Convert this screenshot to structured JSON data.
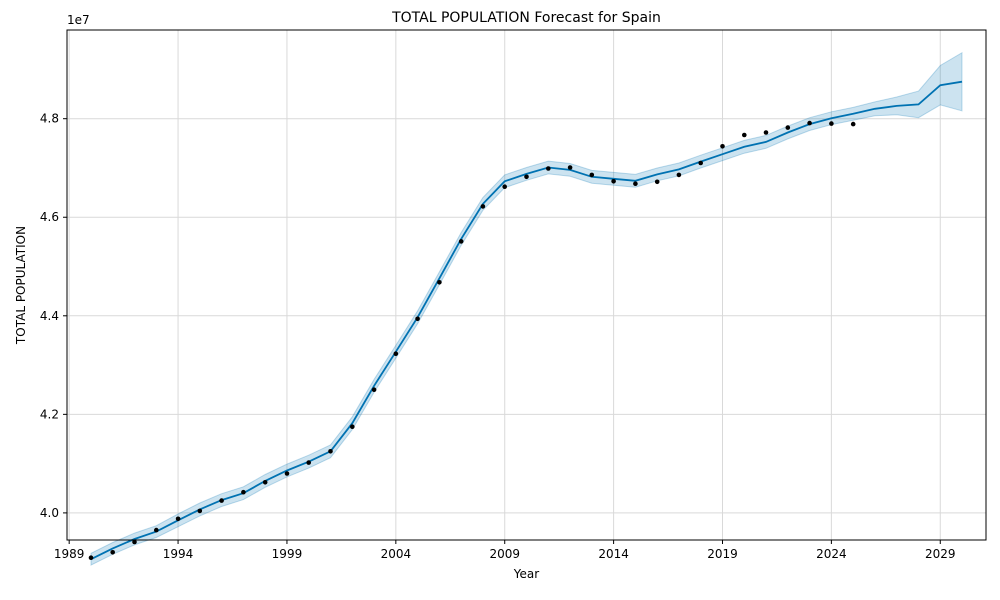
{
  "chart_data": {
    "type": "line",
    "title": "TOTAL POPULATION Forecast for Spain",
    "xlabel": "Year",
    "ylabel": "TOTAL POPULATION",
    "y_offset_label": "1e7",
    "y_scale": 10000000,
    "xlim": [
      1988.9,
      2031.1
    ],
    "ylim": [
      3.945,
      4.98
    ],
    "x_ticks": [
      1989,
      1994,
      1999,
      2004,
      2009,
      2014,
      2019,
      2024,
      2029
    ],
    "y_ticks": [
      4.0,
      4.2,
      4.4,
      4.6,
      4.8
    ],
    "y_tick_labels": [
      "4.0",
      "4.2",
      "4.4",
      "4.6",
      "4.8"
    ],
    "grid": true,
    "colors": {
      "forecast_line": "#0072b2",
      "interval_fill": "#0072b2",
      "observed_points": "#000000",
      "grid": "#d9d9d9"
    },
    "series": [
      {
        "kind": "observed",
        "x": [
          1990,
          1991,
          1992,
          1993,
          1994,
          1995,
          1996,
          1997,
          1998,
          1999,
          2000,
          2001,
          2002,
          2003,
          2004,
          2005,
          2006,
          2007,
          2008,
          2009,
          2010,
          2011,
          2012,
          2013,
          2014,
          2015,
          2016,
          2017,
          2018,
          2019,
          2020,
          2021,
          2022,
          2023,
          2024,
          2025
        ],
        "values": [
          3.909,
          3.92,
          3.941,
          3.965,
          3.988,
          4.004,
          4.025,
          4.042,
          4.062,
          4.08,
          4.102,
          4.125,
          4.175,
          4.25,
          4.323,
          4.394,
          4.468,
          4.551,
          4.622,
          4.662,
          4.682,
          4.699,
          4.701,
          4.686,
          4.673,
          4.668,
          4.672,
          4.686,
          4.71,
          4.744,
          4.767,
          4.772,
          4.782,
          4.791,
          4.79,
          4.789
        ]
      },
      {
        "kind": "forecast",
        "x": [
          1990,
          1991,
          1992,
          1993,
          1994,
          1995,
          1996,
          1997,
          1998,
          1999,
          2000,
          2001,
          2002,
          2003,
          2004,
          2005,
          2006,
          2007,
          2008,
          2009,
          2010,
          2011,
          2012,
          2013,
          2014,
          2015,
          2016,
          2017,
          2018,
          2019,
          2020,
          2021,
          2022,
          2023,
          2024,
          2025,
          2026,
          2027,
          2028,
          2029,
          2030
        ],
        "values": [
          3.906,
          3.928,
          3.947,
          3.962,
          3.985,
          4.007,
          4.026,
          4.04,
          4.065,
          4.086,
          4.104,
          4.125,
          4.182,
          4.258,
          4.327,
          4.397,
          4.476,
          4.556,
          4.627,
          4.673,
          4.688,
          4.701,
          4.696,
          4.682,
          4.678,
          4.674,
          4.687,
          4.697,
          4.713,
          4.728,
          4.743,
          4.753,
          4.772,
          4.789,
          4.801,
          4.81,
          4.82,
          4.826,
          4.829,
          4.868,
          4.875
        ],
        "lower": [
          3.894,
          3.916,
          3.935,
          3.95,
          3.972,
          3.994,
          4.013,
          4.027,
          4.052,
          4.073,
          4.091,
          4.112,
          4.169,
          4.245,
          4.314,
          4.384,
          4.463,
          4.543,
          4.614,
          4.66,
          4.675,
          4.688,
          4.683,
          4.669,
          4.665,
          4.661,
          4.674,
          4.684,
          4.7,
          4.715,
          4.73,
          4.74,
          4.759,
          4.776,
          4.788,
          4.797,
          4.806,
          4.808,
          4.802,
          4.828,
          4.816
        ],
        "upper": [
          3.918,
          3.94,
          3.959,
          3.974,
          3.998,
          4.02,
          4.039,
          4.053,
          4.078,
          4.099,
          4.117,
          4.138,
          4.195,
          4.271,
          4.34,
          4.41,
          4.489,
          4.569,
          4.64,
          4.686,
          4.701,
          4.714,
          4.709,
          4.695,
          4.691,
          4.687,
          4.7,
          4.71,
          4.726,
          4.741,
          4.756,
          4.766,
          4.785,
          4.802,
          4.814,
          4.823,
          4.834,
          4.844,
          4.856,
          4.908,
          4.934
        ]
      }
    ]
  }
}
